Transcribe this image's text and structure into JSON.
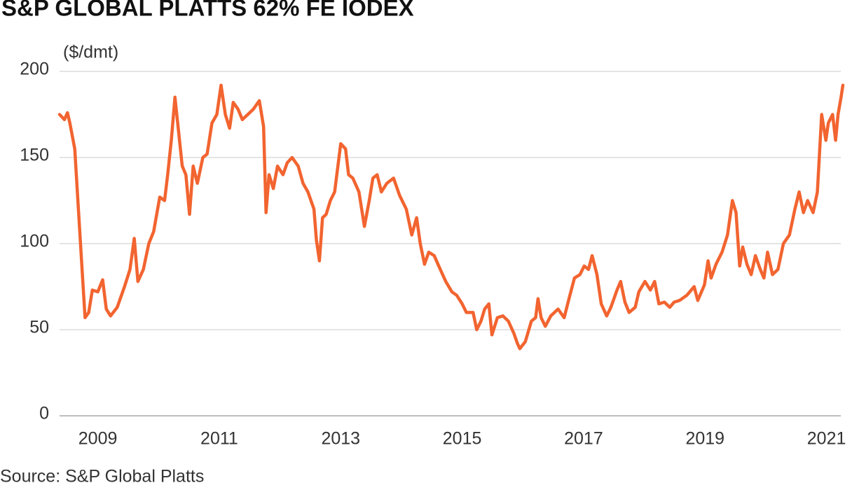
{
  "chart_data": {
    "type": "line",
    "title": "S&P GLOBAL PLATTS 62% FE IODEX",
    "y_label": "($/dmt)",
    "source": "Source: S&P Global Platts",
    "xlim": [
      2008.37,
      2021.27
    ],
    "xticks": [
      2009,
      2011,
      2013,
      2015,
      2017,
      2019,
      2021
    ],
    "ylim": [
      0,
      200
    ],
    "yticks": [
      0,
      50,
      100,
      150,
      200
    ],
    "grid": true,
    "series": [
      {
        "color": "#f26430",
        "x": [
          2008.37,
          2008.45,
          2008.5,
          2008.54,
          2008.62,
          2008.68,
          2008.75,
          2008.79,
          2008.85,
          2008.91,
          2009.0,
          2009.08,
          2009.14,
          2009.21,
          2009.32,
          2009.44,
          2009.53,
          2009.6,
          2009.66,
          2009.75,
          2009.84,
          2009.92,
          2010.02,
          2010.1,
          2010.15,
          2010.21,
          2010.27,
          2010.33,
          2010.39,
          2010.45,
          2010.51,
          2010.57,
          2010.64,
          2010.73,
          2010.8,
          2010.88,
          2010.96,
          2011.03,
          2011.1,
          2011.17,
          2011.23,
          2011.31,
          2011.38,
          2011.47,
          2011.56,
          2011.66,
          2011.73,
          2011.77,
          2011.82,
          2011.89,
          2011.96,
          2012.05,
          2012.12,
          2012.2,
          2012.3,
          2012.38,
          2012.46,
          2012.56,
          2012.6,
          2012.65,
          2012.7,
          2012.76,
          2012.83,
          2012.9,
          2013.0,
          2013.08,
          2013.13,
          2013.2,
          2013.3,
          2013.39,
          2013.47,
          2013.53,
          2013.6,
          2013.67,
          2013.76,
          2013.87,
          2013.97,
          2014.08,
          2014.17,
          2014.25,
          2014.31,
          2014.38,
          2014.45,
          2014.54,
          2014.64,
          2014.73,
          2014.83,
          2014.91,
          2015.0,
          2015.07,
          2015.18,
          2015.24,
          2015.31,
          2015.37,
          2015.44,
          2015.49,
          2015.58,
          2015.67,
          2015.76,
          2015.85,
          2015.91,
          2015.95,
          2016.04,
          2016.14,
          2016.21,
          2016.25,
          2016.3,
          2016.37,
          2016.46,
          2016.58,
          2016.68,
          2016.76,
          2016.85,
          2016.94,
          2017.01,
          2017.08,
          2017.14,
          2017.22,
          2017.29,
          2017.38,
          2017.45,
          2017.55,
          2017.61,
          2017.68,
          2017.75,
          2017.85,
          2017.91,
          2018.01,
          2018.1,
          2018.17,
          2018.24,
          2018.33,
          2018.42,
          2018.49,
          2018.58,
          2018.7,
          2018.82,
          2018.88,
          2018.99,
          2019.05,
          2019.1,
          2019.18,
          2019.28,
          2019.37,
          2019.45,
          2019.51,
          2019.57,
          2019.62,
          2019.69,
          2019.76,
          2019.83,
          2019.91,
          2019.97,
          2020.03,
          2020.11,
          2020.2,
          2020.29,
          2020.39,
          2020.48,
          2020.55,
          2020.62,
          2020.69,
          2020.78,
          2020.85,
          2020.92,
          2020.99,
          2021.03,
          2021.1,
          2021.15,
          2021.19,
          2021.24,
          2021.27
        ],
        "values": [
          175,
          172,
          176,
          170,
          155,
          120,
          80,
          57,
          60,
          73,
          72,
          79,
          62,
          58,
          63,
          75,
          85,
          103,
          78,
          85,
          100,
          107,
          127,
          125,
          140,
          160,
          185,
          165,
          145,
          140,
          117,
          145,
          135,
          150,
          152,
          170,
          175,
          192,
          175,
          167,
          182,
          178,
          172,
          175,
          178,
          183,
          168,
          118,
          140,
          132,
          145,
          140,
          147,
          150,
          145,
          135,
          130,
          120,
          102,
          90,
          115,
          117,
          125,
          130,
          158,
          155,
          140,
          138,
          130,
          110,
          125,
          138,
          140,
          130,
          135,
          138,
          128,
          120,
          105,
          115,
          100,
          88,
          95,
          93,
          85,
          78,
          72,
          70,
          65,
          60,
          60,
          50,
          55,
          62,
          65,
          47,
          57,
          58,
          55,
          48,
          42,
          39,
          43,
          55,
          57,
          68,
          57,
          52,
          58,
          62,
          57,
          68,
          80,
          82,
          87,
          85,
          93,
          82,
          65,
          58,
          63,
          73,
          78,
          66,
          60,
          63,
          72,
          78,
          73,
          78,
          65,
          66,
          63,
          66,
          67,
          70,
          75,
          67,
          76,
          90,
          80,
          88,
          95,
          105,
          125,
          118,
          87,
          98,
          88,
          82,
          93,
          85,
          80,
          95,
          82,
          85,
          100,
          105,
          120,
          130,
          118,
          125,
          118,
          130,
          175,
          160,
          170,
          175,
          160,
          175,
          185,
          192
        ]
      }
    ]
  }
}
